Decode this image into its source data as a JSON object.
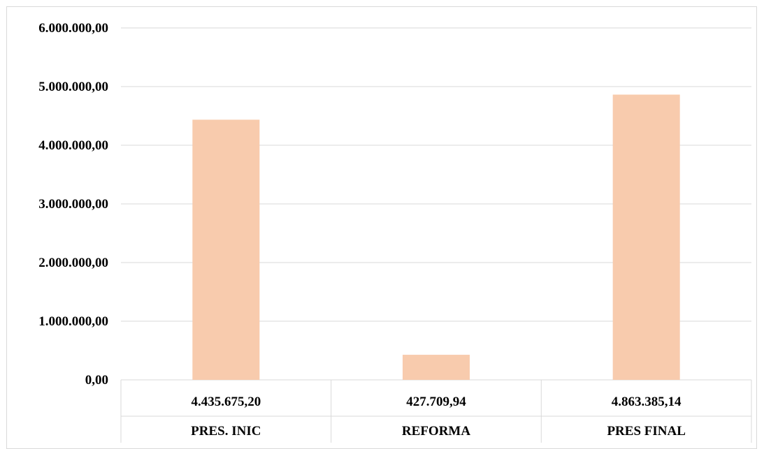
{
  "chart_data": {
    "type": "bar",
    "categories": [
      "PRES. INIC",
      "REFORMA",
      "PRES FINAL"
    ],
    "values": [
      4435675.2,
      427709.94,
      4863385.14
    ],
    "value_labels": [
      "4.435.675,20",
      "427.709,94",
      "4.863.385,14"
    ],
    "ylim": [
      0,
      6000000
    ],
    "yticks": [
      0,
      1000000,
      2000000,
      3000000,
      4000000,
      5000000,
      6000000
    ],
    "ytick_labels": [
      "0,00",
      "1.000.000,00",
      "2.000.000,00",
      "3.000.000,00",
      "4.000.000,00",
      "5.000.000,00",
      "6.000.000,00"
    ],
    "grid": true,
    "data_table": true,
    "bar_color": "#f8cbad",
    "grid_color": "#d9d9d9"
  }
}
